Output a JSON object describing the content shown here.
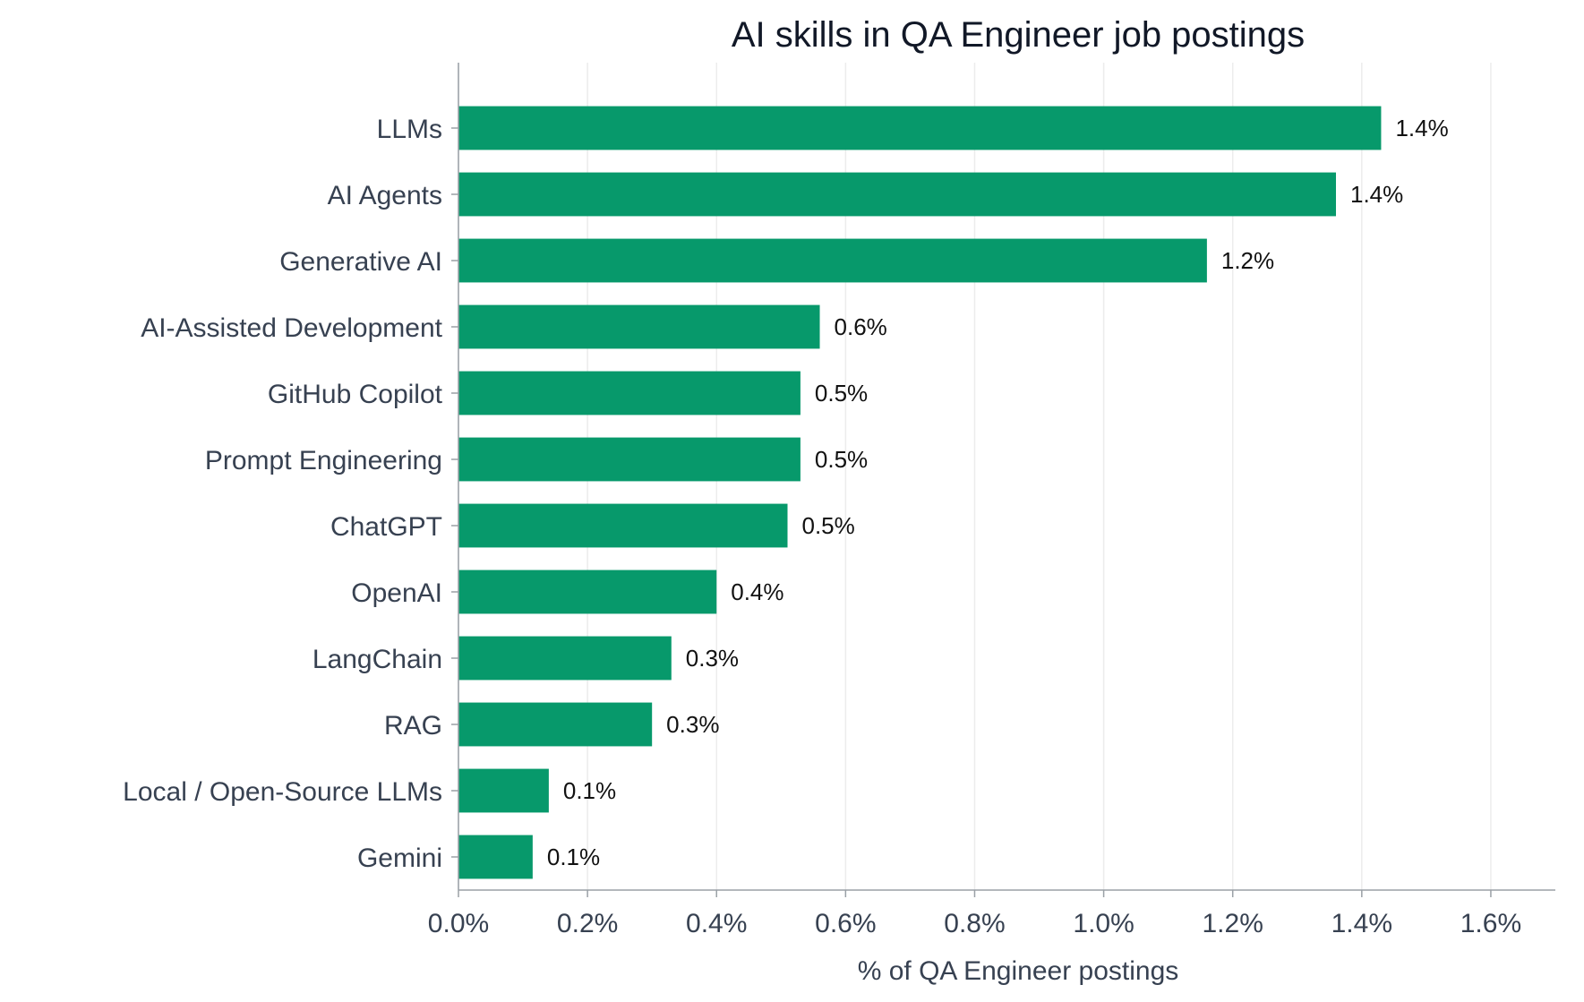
{
  "chart_data": {
    "type": "bar",
    "orientation": "horizontal",
    "title": "AI skills in QA Engineer job postings",
    "xlabel": "% of QA Engineer postings",
    "ylabel": "",
    "xlim": [
      0,
      1.7
    ],
    "xticks": [
      0,
      0.2,
      0.4,
      0.6,
      0.8,
      1.0,
      1.2,
      1.4,
      1.6
    ],
    "xtick_labels": [
      "0.0%",
      "0.2%",
      "0.4%",
      "0.6%",
      "0.8%",
      "1.0%",
      "1.2%",
      "1.4%",
      "1.6%"
    ],
    "grid": "vertical",
    "bar_color": "#07996b",
    "categories": [
      "LLMs",
      "AI Agents",
      "Generative AI",
      "AI-Assisted Development",
      "GitHub Copilot",
      "Prompt Engineering",
      "ChatGPT",
      "OpenAI",
      "LangChain",
      "RAG",
      "Local / Open-Source LLMs",
      "Gemini"
    ],
    "values": [
      1.43,
      1.36,
      1.16,
      0.56,
      0.53,
      0.53,
      0.51,
      0.4,
      0.33,
      0.3,
      0.14,
      0.115
    ],
    "value_labels": [
      "1.4%",
      "1.4%",
      "1.2%",
      "0.6%",
      "0.5%",
      "0.5%",
      "0.5%",
      "0.4%",
      "0.3%",
      "0.3%",
      "0.1%",
      "0.1%"
    ]
  }
}
